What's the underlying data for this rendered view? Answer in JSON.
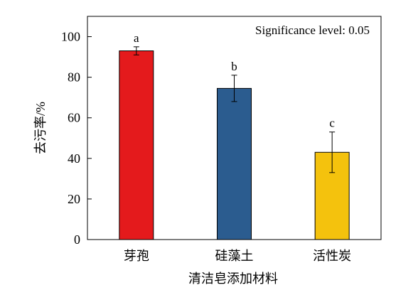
{
  "chart_data": {
    "type": "bar",
    "categories": [
      "芽孢",
      "硅藻土",
      "活性炭"
    ],
    "values": [
      93,
      74.5,
      43
    ],
    "error": [
      2,
      6.5,
      10
    ],
    "significance_letters": [
      "a",
      "b",
      "c"
    ],
    "bar_colors": [
      "#E41A1C",
      "#2B5C8F",
      "#F4C20D"
    ],
    "xlabel": "清洁皂添加材料",
    "ylabel": "去污率/%",
    "ylim": [
      0,
      110
    ],
    "yticks": [
      "0",
      "20",
      "40",
      "60",
      "80",
      "100"
    ],
    "annotation": "Significance level: 0.05",
    "grid": false,
    "legend": "none"
  }
}
